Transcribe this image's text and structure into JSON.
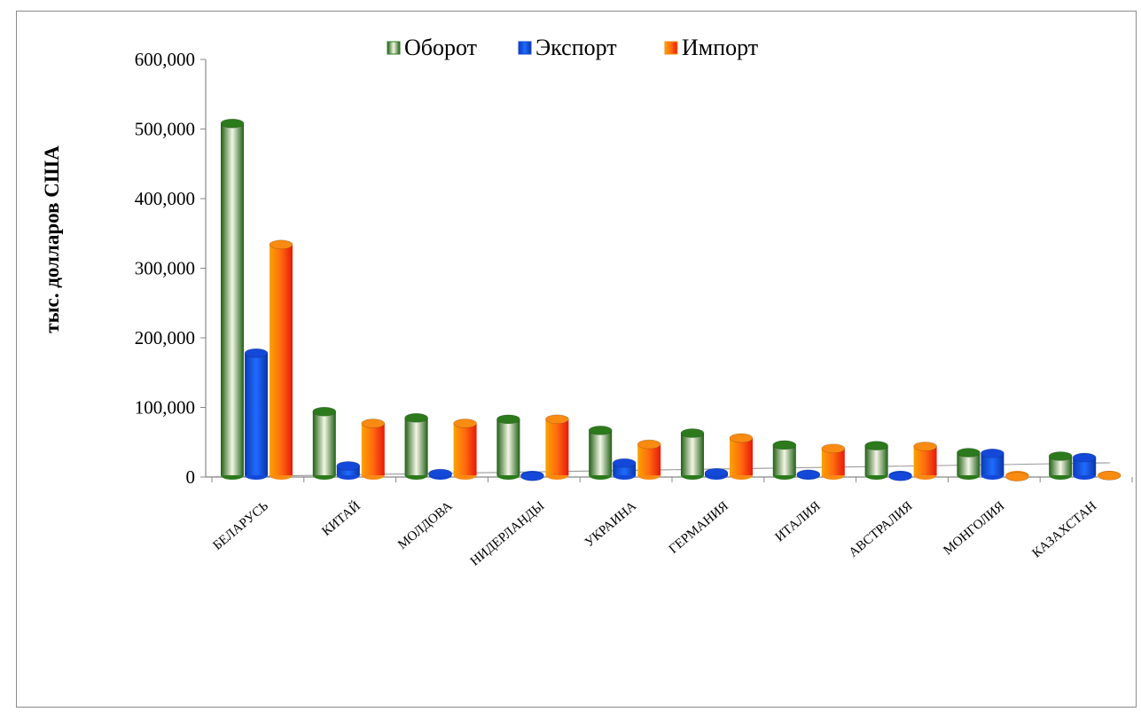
{
  "chart_data": {
    "type": "bar",
    "ylabel": "тыс. долларов США",
    "ylim": [
      0,
      600000
    ],
    "yticks": [
      "0",
      "100,000",
      "200,000",
      "300,000",
      "400,000",
      "500,000",
      "600,000"
    ],
    "yticks_values": [
      0,
      100000,
      200000,
      300000,
      400000,
      500000,
      600000
    ],
    "legend_position": "top",
    "categories": [
      "БЕЛАРУСЬ",
      "КИТАЙ",
      "МОЛДОВА",
      "НИДЕРЛАНДЫ",
      "УКРАИНА",
      "ГЕРМАНИЯ",
      "ИТАЛИЯ",
      "АВСТРАЛИЯ",
      "МОНГОЛИЯ",
      "КАЗАХСТАН"
    ],
    "series": [
      {
        "name": "Оборот",
        "color": "#2e7d1f",
        "values": [
          508000,
          94000,
          85000,
          83000,
          67000,
          63000,
          46000,
          45000,
          35000,
          30000
        ]
      },
      {
        "name": "Экспорт",
        "color": "#0a4de0",
        "values": [
          178000,
          16000,
          5000,
          1000,
          20000,
          6000,
          4000,
          1000,
          34000,
          28000
        ]
      },
      {
        "name": "Импорт",
        "color": "#f25a0a",
        "values": [
          334000,
          77000,
          77000,
          83000,
          47000,
          56000,
          41000,
          44000,
          500,
          2000
        ]
      }
    ],
    "grid": false
  }
}
